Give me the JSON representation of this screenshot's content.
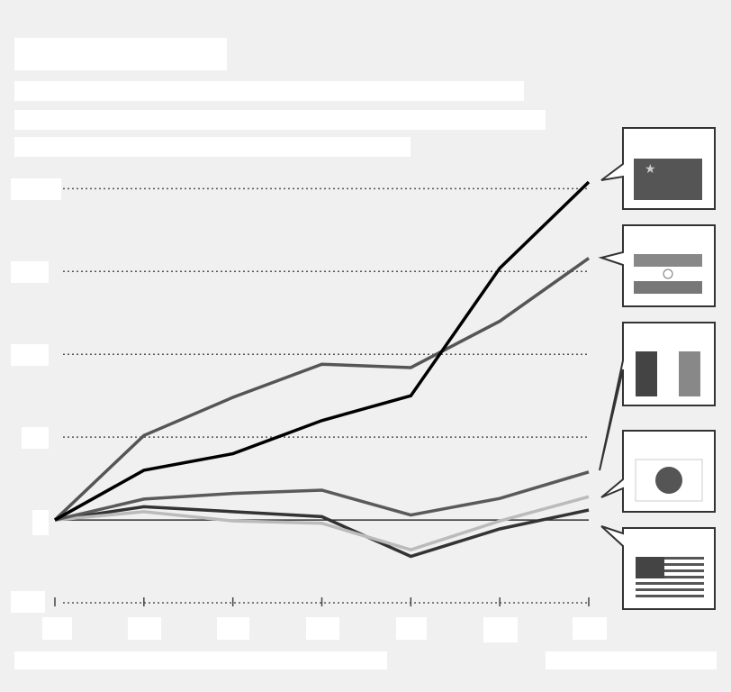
{
  "chart_data": {
    "type": "line",
    "categories": [
      null,
      null,
      null,
      null,
      null,
      null,
      null
    ],
    "ylim": [
      -25,
      105
    ],
    "yticks": [
      -25,
      0,
      25,
      50,
      75,
      100
    ],
    "grid": true,
    "series": [
      {
        "color": "#000000",
        "values": [
          0,
          15,
          20,
          30,
          37.5,
          76,
          102
        ]
      },
      {
        "color": "#555555",
        "values": [
          0,
          25.5,
          37,
          47,
          46,
          60,
          79
        ]
      },
      {
        "color": "#5a5a5a",
        "values": [
          0,
          6.3,
          8,
          9,
          1.5,
          6.5,
          14.5
        ]
      },
      {
        "color": "#bbbbbb",
        "values": [
          0,
          2.5,
          -0.3,
          -1,
          -9,
          -0.3,
          7
        ]
      },
      {
        "color": "#333333",
        "values": [
          0,
          4,
          2.5,
          1,
          -11,
          -2.7,
          3
        ]
      }
    ]
  }
}
